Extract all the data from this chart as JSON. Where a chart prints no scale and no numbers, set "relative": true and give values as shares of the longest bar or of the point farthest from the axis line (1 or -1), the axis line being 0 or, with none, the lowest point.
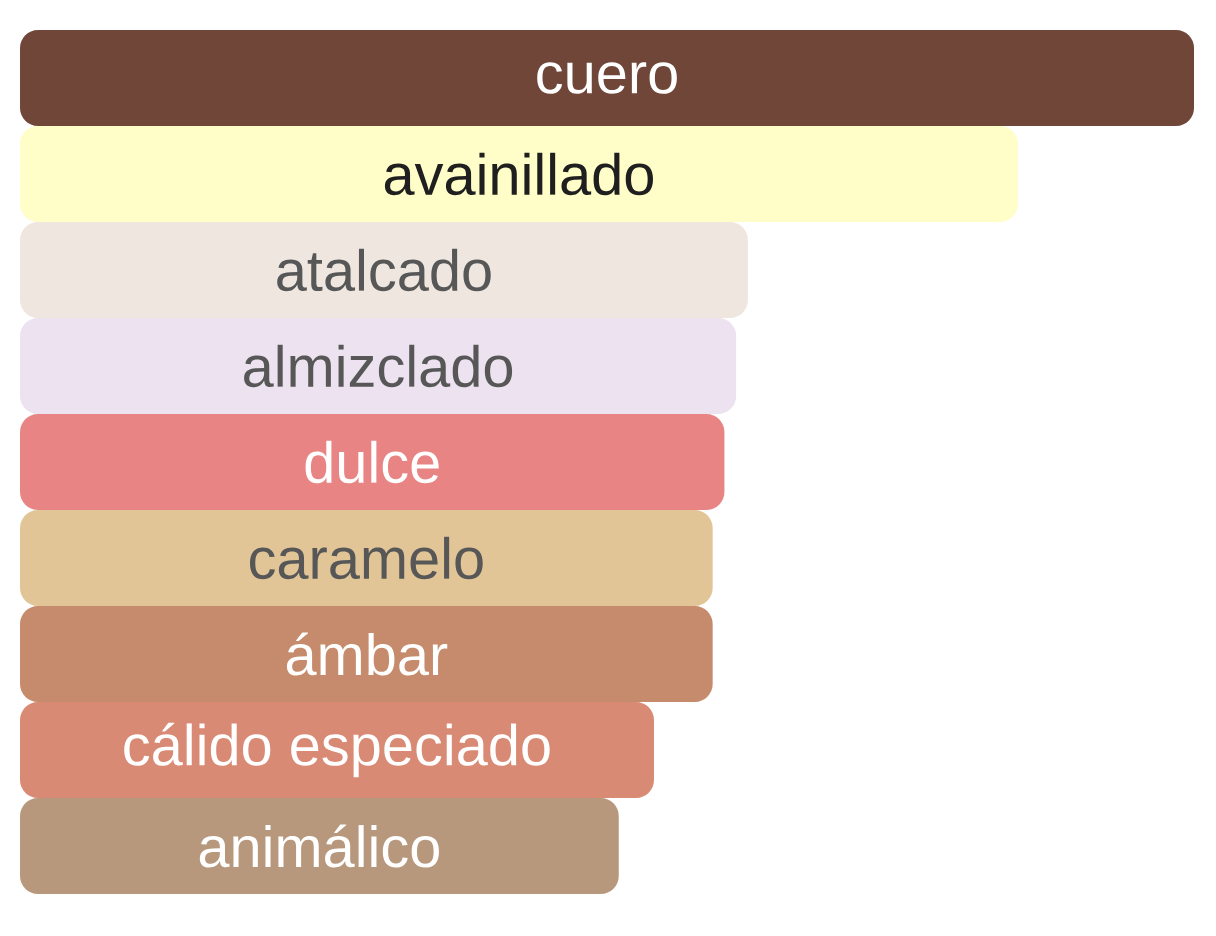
{
  "chart_data": {
    "type": "bar",
    "orientation": "horizontal",
    "relative": true,
    "categories": [
      "cuero",
      "avainillado",
      "atalcado",
      "almizclado",
      "dulce",
      "caramelo",
      "ámbar",
      "cálido especiado",
      "animálico"
    ],
    "values": [
      1,
      0.85,
      0.62,
      0.61,
      0.6,
      0.59,
      0.59,
      0.54,
      0.51
    ],
    "colors": [
      "#704639",
      "#fffdc8",
      "#efe6df",
      "#ede2ef",
      "#e88584",
      "#e2c597",
      "#c68b6c",
      "#d98a74",
      "#b8987d"
    ]
  }
}
